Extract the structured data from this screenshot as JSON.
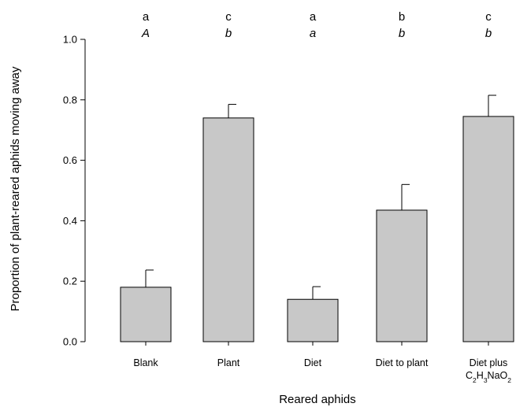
{
  "chart_data": {
    "type": "bar",
    "xlabel": "Reared aphids",
    "ylabel": "Proportion of plant-reared aphids moving away",
    "ylim": [
      0,
      1.0
    ],
    "yticks": [
      "0.0",
      "0.2",
      "0.4",
      "0.6",
      "0.8",
      "1.0"
    ],
    "grid": false,
    "categories": [
      {
        "label": "Blank"
      },
      {
        "label": "Plant"
      },
      {
        "label": "Diet"
      },
      {
        "label": "Diet to plant"
      },
      {
        "label": "Diet plus",
        "formula": {
          "parts": [
            "C",
            "2",
            "H",
            "3",
            "NaO",
            "2"
          ]
        }
      }
    ],
    "values": [
      0.18,
      0.74,
      0.14,
      0.435,
      0.745
    ],
    "errors": [
      0.057,
      0.045,
      0.042,
      0.085,
      0.07
    ],
    "significance_upper": [
      "a",
      "c",
      "a",
      "b",
      "c"
    ],
    "significance_lower": [
      "A",
      "b",
      "a",
      "b",
      "b"
    ],
    "bar_color": "#c8c8c8",
    "bar_edge_color": "#000000"
  }
}
